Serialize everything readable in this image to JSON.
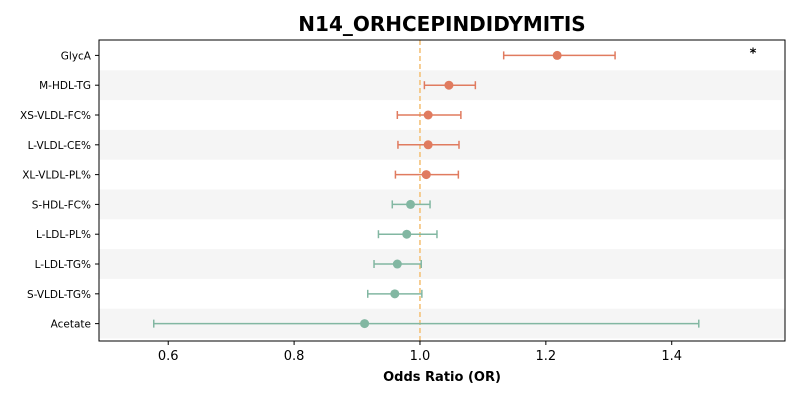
{
  "chart_data": {
    "type": "forest",
    "title": "N14_ORHCEPINDIDYMITIS",
    "xlabel": "Odds Ratio (OR)",
    "ylabel": "",
    "xlim": [
      0.49,
      1.58
    ],
    "x_ticks": [
      0.6,
      0.8,
      1.0,
      1.2,
      1.4
    ],
    "x_tick_labels": [
      "0.6",
      "0.8",
      "1.0",
      "1.2",
      "1.4"
    ],
    "reference_line": 1.0,
    "grid": false,
    "rows": [
      {
        "label": "GlycA",
        "or": 1.218,
        "ci_low": 1.133,
        "ci_high": 1.31,
        "direction": "positive",
        "marker": "*"
      },
      {
        "label": "M-HDL-TG",
        "or": 1.046,
        "ci_low": 1.007,
        "ci_high": 1.088,
        "direction": "positive",
        "marker": ""
      },
      {
        "label": "XS-VLDL-FC%",
        "or": 1.013,
        "ci_low": 0.964,
        "ci_high": 1.065,
        "direction": "positive",
        "marker": ""
      },
      {
        "label": "L-VLDL-CE%",
        "or": 1.013,
        "ci_low": 0.965,
        "ci_high": 1.062,
        "direction": "positive",
        "marker": ""
      },
      {
        "label": "XL-VLDL-PL%",
        "or": 1.01,
        "ci_low": 0.961,
        "ci_high": 1.061,
        "direction": "positive",
        "marker": ""
      },
      {
        "label": "S-HDL-FC%",
        "or": 0.985,
        "ci_low": 0.956,
        "ci_high": 1.016,
        "direction": "negative",
        "marker": ""
      },
      {
        "label": "L-LDL-PL%",
        "or": 0.979,
        "ci_low": 0.934,
        "ci_high": 1.027,
        "direction": "negative",
        "marker": ""
      },
      {
        "label": "L-LDL-TG%",
        "or": 0.964,
        "ci_low": 0.927,
        "ci_high": 1.002,
        "direction": "negative",
        "marker": ""
      },
      {
        "label": "S-VLDL-TG%",
        "or": 0.96,
        "ci_low": 0.917,
        "ci_high": 1.003,
        "direction": "negative",
        "marker": ""
      },
      {
        "label": "Acetate",
        "or": 0.912,
        "ci_low": 0.577,
        "ci_high": 1.443,
        "direction": "negative",
        "marker": ""
      }
    ],
    "colors": {
      "positive": "#e07b5f",
      "negative": "#82b7a2",
      "reference_line": "#f5c27a",
      "stripe": "#f5f5f5"
    }
  }
}
